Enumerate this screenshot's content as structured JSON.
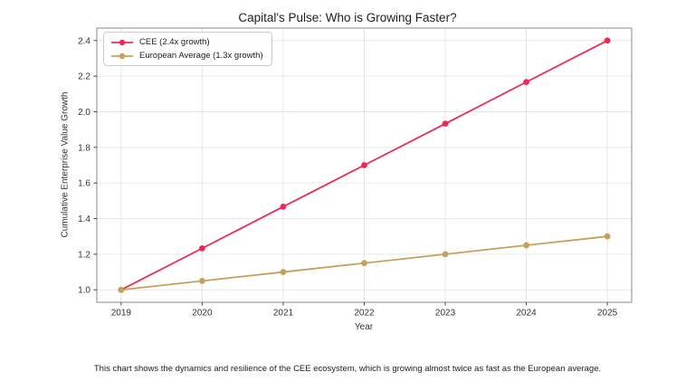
{
  "chart_data": {
    "type": "line",
    "title": "Capital's Pulse: Who is Growing Faster?",
    "xlabel": "Year",
    "ylabel": "Cumulative Enterprise Value Growth",
    "x": [
      2019,
      2020,
      2021,
      2022,
      2023,
      2024,
      2025
    ],
    "series": [
      {
        "name": "CEE (2.4x growth)",
        "color": "#EC2A58",
        "values": [
          1.0,
          1.233,
          1.467,
          1.7,
          1.933,
          2.167,
          2.4
        ]
      },
      {
        "name": "European Average (1.3x growth)",
        "color": "#C5A15D",
        "values": [
          1.0,
          1.05,
          1.1,
          1.15,
          1.2,
          1.25,
          1.3
        ]
      }
    ],
    "xticks": [
      2019,
      2020,
      2021,
      2022,
      2023,
      2024,
      2025
    ],
    "yticks": [
      1.0,
      1.2,
      1.4,
      1.6,
      1.8,
      2.0,
      2.2,
      2.4
    ],
    "xlim": [
      2018.7,
      2025.3
    ],
    "ylim": [
      0.93,
      2.47
    ],
    "grid": true,
    "grid_color": "#e6e6e6",
    "spine_color": "#8a8a8a",
    "tick_color": "#444444",
    "legend_position": "upper left"
  },
  "caption": "This chart shows the dynamics and resilience of the CEE ecosystem, which is growing almost twice as fast as the European average."
}
